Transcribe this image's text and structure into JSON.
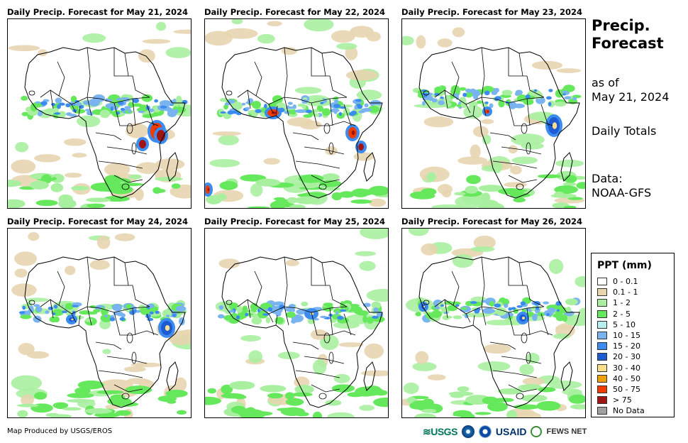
{
  "panels": [
    {
      "title": "Daily Precip. Forecast for May 21, 2024"
    },
    {
      "title": "Daily Precip. Forecast for May 22, 2024"
    },
    {
      "title": "Daily Precip. Forecast for May 23, 2024"
    },
    {
      "title": "Daily Precip. Forecast for May 24, 2024"
    },
    {
      "title": "Daily Precip. Forecast for May 25, 2024"
    },
    {
      "title": "Daily Precip. Forecast for May 26, 2024"
    }
  ],
  "sidebar": {
    "title_line1": "Precip.",
    "title_line2": "Forecast",
    "asof_line1": "as of",
    "asof_line2": "May 21, 2024",
    "totals": "Daily Totals",
    "data_line1": "Data:",
    "data_line2": "NOAA-GFS"
  },
  "legend": {
    "title": "PPT (mm)",
    "items": [
      {
        "label": "0 - 0.1",
        "color": "#ffffff"
      },
      {
        "label": "0.1 - 1",
        "color": "#e8d5b0"
      },
      {
        "label": "1 - 2",
        "color": "#a8f0a0"
      },
      {
        "label": "2 - 5",
        "color": "#66e85c"
      },
      {
        "label": "5 - 10",
        "color": "#b8f0f0"
      },
      {
        "label": "10 - 15",
        "color": "#7ab4f0"
      },
      {
        "label": "15 - 20",
        "color": "#3c8cf0"
      },
      {
        "label": "20 - 30",
        "color": "#1e5ad2"
      },
      {
        "label": "30 - 40",
        "color": "#f8e08c"
      },
      {
        "label": "40 - 50",
        "color": "#f0a000"
      },
      {
        "label": "50 - 75",
        "color": "#f03c00"
      },
      {
        "label": "> 75",
        "color": "#a01414"
      },
      {
        "label": "No Data",
        "color": "#a0a0a0"
      }
    ]
  },
  "footer": {
    "credit": "Map Produced by USGS/EROS"
  },
  "logos": {
    "usgs": "USGS",
    "usaid": "USAID",
    "fews": "FEWS NET"
  }
}
